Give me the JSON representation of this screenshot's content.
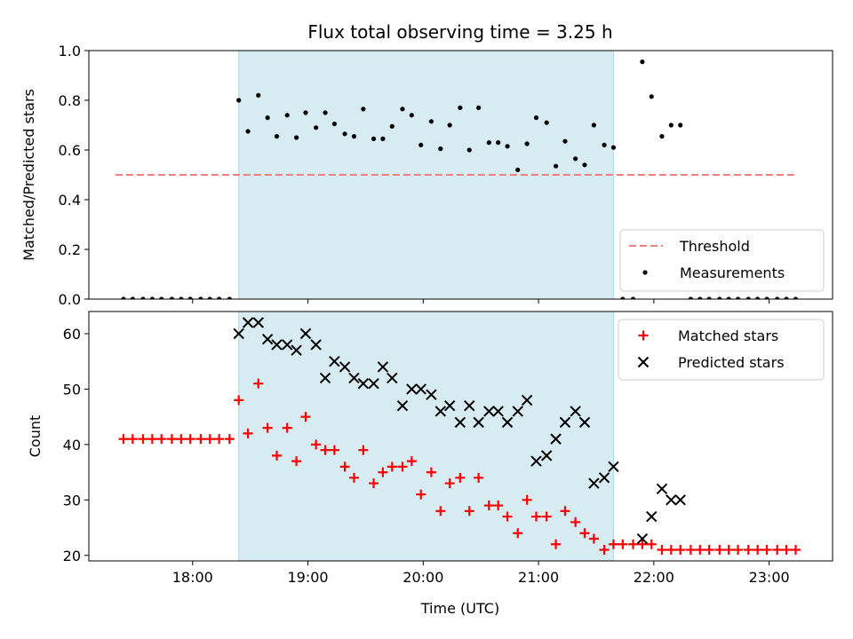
{
  "chart_data": {
    "type": "scatter",
    "title": "Flux total observing time = 3.25 h",
    "xlabel": "Time (UTC)",
    "x_unit": "hours",
    "xlim": [
      17.1,
      23.55
    ],
    "xticks": [
      18,
      19,
      20,
      21,
      22,
      23
    ],
    "xtick_labels": [
      "18:00",
      "19:00",
      "20:00",
      "21:00",
      "22:00",
      "23:00"
    ],
    "observing_window": {
      "start": 18.4,
      "end": 21.65,
      "color": "#add8e6"
    },
    "panels": [
      {
        "name": "ratio",
        "ylabel": "Matched/Predicted stars",
        "ylim": [
          0,
          1.0
        ],
        "yticks": [
          0.0,
          0.2,
          0.4,
          0.6,
          0.8,
          1.0
        ],
        "ytick_labels": [
          "0.0",
          "0.2",
          "0.4",
          "0.6",
          "0.8",
          "1.0"
        ],
        "legend_position": "lower-right",
        "threshold": {
          "name": "Threshold",
          "value": 0.5,
          "x_start": 17.33,
          "x_end": 23.25,
          "color": "#f08080"
        },
        "series": [
          {
            "name": "Measurements",
            "marker": "dot",
            "color": "#000000",
            "points": [
              [
                17.4,
                0
              ],
              [
                17.48,
                0
              ],
              [
                17.57,
                0
              ],
              [
                17.65,
                0
              ],
              [
                17.73,
                0
              ],
              [
                17.82,
                0
              ],
              [
                17.9,
                0
              ],
              [
                17.98,
                0
              ],
              [
                18.07,
                0
              ],
              [
                18.15,
                0
              ],
              [
                18.23,
                0
              ],
              [
                18.32,
                0
              ],
              [
                18.4,
                0.8
              ],
              [
                18.48,
                0.675
              ],
              [
                18.57,
                0.82
              ],
              [
                18.65,
                0.73
              ],
              [
                18.73,
                0.655
              ],
              [
                18.82,
                0.74
              ],
              [
                18.9,
                0.65
              ],
              [
                18.98,
                0.75
              ],
              [
                19.07,
                0.69
              ],
              [
                19.15,
                0.75
              ],
              [
                19.23,
                0.705
              ],
              [
                19.32,
                0.665
              ],
              [
                19.4,
                0.655
              ],
              [
                19.48,
                0.765
              ],
              [
                19.57,
                0.645
              ],
              [
                19.65,
                0.645
              ],
              [
                19.73,
                0.695
              ],
              [
                19.82,
                0.765
              ],
              [
                19.9,
                0.74
              ],
              [
                19.98,
                0.62
              ],
              [
                20.07,
                0.715
              ],
              [
                20.15,
                0.605
              ],
              [
                20.23,
                0.7
              ],
              [
                20.32,
                0.77
              ],
              [
                20.4,
                0.6
              ],
              [
                20.48,
                0.77
              ],
              [
                20.57,
                0.63
              ],
              [
                20.65,
                0.63
              ],
              [
                20.73,
                0.615
              ],
              [
                20.82,
                0.52
              ],
              [
                20.9,
                0.625
              ],
              [
                20.98,
                0.73
              ],
              [
                21.07,
                0.71
              ],
              [
                21.15,
                0.535
              ],
              [
                21.23,
                0.635
              ],
              [
                21.32,
                0.565
              ],
              [
                21.4,
                0.54
              ],
              [
                21.48,
                0.7
              ],
              [
                21.57,
                0.62
              ],
              [
                21.65,
                0.61
              ],
              [
                21.73,
                0
              ],
              [
                21.82,
                0
              ],
              [
                21.9,
                0.955
              ],
              [
                21.98,
                0.815
              ],
              [
                22.07,
                0.655
              ],
              [
                22.15,
                0.7
              ],
              [
                22.23,
                0.7
              ],
              [
                22.32,
                0
              ],
              [
                22.4,
                0
              ],
              [
                22.48,
                0
              ],
              [
                22.57,
                0
              ],
              [
                22.65,
                0
              ],
              [
                22.73,
                0
              ],
              [
                22.82,
                0
              ],
              [
                22.9,
                0
              ],
              [
                22.98,
                0
              ],
              [
                23.07,
                0
              ],
              [
                23.15,
                0
              ],
              [
                23.23,
                0
              ]
            ]
          }
        ]
      },
      {
        "name": "counts",
        "ylabel": "Count",
        "ylim": [
          19,
          64
        ],
        "yticks": [
          20,
          30,
          40,
          50,
          60
        ],
        "ytick_labels": [
          "20",
          "30",
          "40",
          "50",
          "60"
        ],
        "legend_position": "upper-right",
        "series": [
          {
            "name": "Matched stars",
            "marker": "plus",
            "color": "#ff0000",
            "points": [
              [
                17.4,
                41
              ],
              [
                17.48,
                41
              ],
              [
                17.57,
                41
              ],
              [
                17.65,
                41
              ],
              [
                17.73,
                41
              ],
              [
                17.82,
                41
              ],
              [
                17.9,
                41
              ],
              [
                17.98,
                41
              ],
              [
                18.07,
                41
              ],
              [
                18.15,
                41
              ],
              [
                18.23,
                41
              ],
              [
                18.32,
                41
              ],
              [
                18.4,
                48
              ],
              [
                18.48,
                42
              ],
              [
                18.57,
                51
              ],
              [
                18.65,
                43
              ],
              [
                18.73,
                38
              ],
              [
                18.82,
                43
              ],
              [
                18.9,
                37
              ],
              [
                18.98,
                45
              ],
              [
                19.07,
                40
              ],
              [
                19.15,
                39
              ],
              [
                19.23,
                39
              ],
              [
                19.32,
                36
              ],
              [
                19.4,
                34
              ],
              [
                19.48,
                39
              ],
              [
                19.57,
                33
              ],
              [
                19.65,
                35
              ],
              [
                19.73,
                36
              ],
              [
                19.82,
                36
              ],
              [
                19.9,
                37
              ],
              [
                19.98,
                31
              ],
              [
                20.07,
                35
              ],
              [
                20.15,
                28
              ],
              [
                20.23,
                33
              ],
              [
                20.32,
                34
              ],
              [
                20.4,
                28
              ],
              [
                20.48,
                34
              ],
              [
                20.57,
                29
              ],
              [
                20.65,
                29
              ],
              [
                20.73,
                27
              ],
              [
                20.82,
                24
              ],
              [
                20.9,
                30
              ],
              [
                20.98,
                27
              ],
              [
                21.07,
                27
              ],
              [
                21.15,
                22
              ],
              [
                21.23,
                28
              ],
              [
                21.32,
                26
              ],
              [
                21.4,
                24
              ],
              [
                21.48,
                23
              ],
              [
                21.57,
                21
              ],
              [
                21.65,
                22
              ],
              [
                21.73,
                22
              ],
              [
                21.82,
                22
              ],
              [
                21.9,
                22
              ],
              [
                21.98,
                22
              ],
              [
                22.07,
                21
              ],
              [
                22.15,
                21
              ],
              [
                22.23,
                21
              ],
              [
                22.32,
                21
              ],
              [
                22.4,
                21
              ],
              [
                22.48,
                21
              ],
              [
                22.57,
                21
              ],
              [
                22.65,
                21
              ],
              [
                22.73,
                21
              ],
              [
                22.82,
                21
              ],
              [
                22.9,
                21
              ],
              [
                22.98,
                21
              ],
              [
                23.07,
                21
              ],
              [
                23.15,
                21
              ],
              [
                23.23,
                21
              ]
            ]
          },
          {
            "name": "Predicted stars",
            "marker": "x",
            "color": "#000000",
            "points": [
              [
                18.4,
                60
              ],
              [
                18.48,
                62
              ],
              [
                18.57,
                62
              ],
              [
                18.65,
                59
              ],
              [
                18.73,
                58
              ],
              [
                18.82,
                58
              ],
              [
                18.9,
                57
              ],
              [
                18.98,
                60
              ],
              [
                19.07,
                58
              ],
              [
                19.15,
                52
              ],
              [
                19.23,
                55
              ],
              [
                19.32,
                54
              ],
              [
                19.4,
                52
              ],
              [
                19.48,
                51
              ],
              [
                19.57,
                51
              ],
              [
                19.65,
                54
              ],
              [
                19.73,
                52
              ],
              [
                19.82,
                47
              ],
              [
                19.9,
                50
              ],
              [
                19.98,
                50
              ],
              [
                20.07,
                49
              ],
              [
                20.15,
                46
              ],
              [
                20.23,
                47
              ],
              [
                20.32,
                44
              ],
              [
                20.4,
                47
              ],
              [
                20.48,
                44
              ],
              [
                20.57,
                46
              ],
              [
                20.65,
                46
              ],
              [
                20.73,
                44
              ],
              [
                20.82,
                46
              ],
              [
                20.9,
                48
              ],
              [
                20.98,
                37
              ],
              [
                21.07,
                38
              ],
              [
                21.15,
                41
              ],
              [
                21.23,
                44
              ],
              [
                21.32,
                46
              ],
              [
                21.4,
                44
              ],
              [
                21.48,
                33
              ],
              [
                21.57,
                34
              ],
              [
                21.65,
                36
              ],
              [
                21.9,
                23
              ],
              [
                21.98,
                27
              ],
              [
                22.07,
                32
              ],
              [
                22.15,
                30
              ],
              [
                22.23,
                30
              ]
            ]
          }
        ]
      }
    ]
  }
}
